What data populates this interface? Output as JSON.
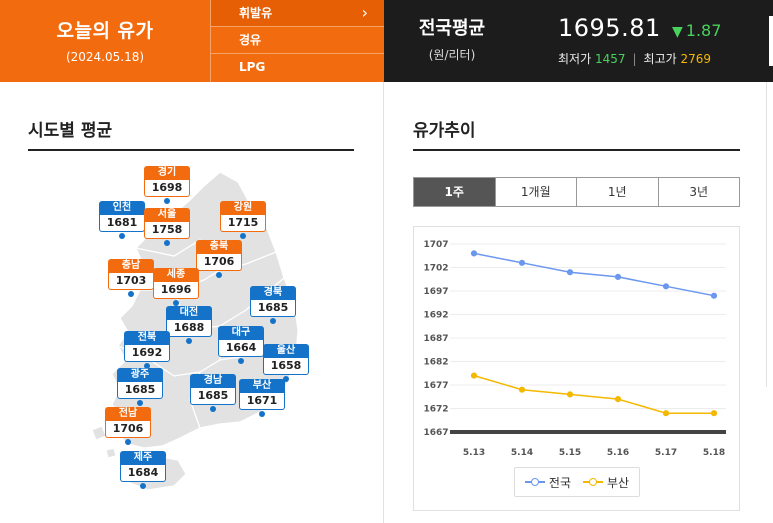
{
  "header": {
    "today_title": "오늘의 유가",
    "today_date": "(2024.05.18)",
    "fuel_menu": [
      {
        "label": "휘발유",
        "active": true
      },
      {
        "label": "경유",
        "active": false
      },
      {
        "label": "LPG",
        "active": false
      }
    ],
    "arrow_icon": "›",
    "national_label": "전국평균",
    "national_unit": "(원/리터)",
    "national_price": "1695.81",
    "change_icon": "▼",
    "national_change": "1.87",
    "min_label": "최저가",
    "min_value": "1457",
    "max_label": "최고가",
    "max_value": "2769",
    "sep": "|"
  },
  "regional": {
    "title": "시도별 평균",
    "regions": [
      {
        "name": "경기",
        "value": "1698",
        "color": "orange"
      },
      {
        "name": "인천",
        "value": "1681",
        "color": "blue"
      },
      {
        "name": "서울",
        "value": "1758",
        "color": "orange"
      },
      {
        "name": "강원",
        "value": "1715",
        "color": "orange"
      },
      {
        "name": "충북",
        "value": "1706",
        "color": "orange"
      },
      {
        "name": "충남",
        "value": "1703",
        "color": "orange"
      },
      {
        "name": "세종",
        "value": "1696",
        "color": "orange"
      },
      {
        "name": "경북",
        "value": "1685",
        "color": "blue"
      },
      {
        "name": "대전",
        "value": "1688",
        "color": "blue"
      },
      {
        "name": "전북",
        "value": "1692",
        "color": "blue"
      },
      {
        "name": "대구",
        "value": "1664",
        "color": "blue"
      },
      {
        "name": "울산",
        "value": "1658",
        "color": "blue"
      },
      {
        "name": "광주",
        "value": "1685",
        "color": "blue"
      },
      {
        "name": "경남",
        "value": "1685",
        "color": "blue"
      },
      {
        "name": "부산",
        "value": "1671",
        "color": "blue"
      },
      {
        "name": "전남",
        "value": "1706",
        "color": "orange"
      },
      {
        "name": "제주",
        "value": "1684",
        "color": "blue"
      }
    ]
  },
  "trend": {
    "title": "유가추이",
    "tabs": [
      {
        "label": "1주",
        "active": true
      },
      {
        "label": "1개월",
        "active": false
      },
      {
        "label": "1년",
        "active": false
      },
      {
        "label": "3년",
        "active": false
      }
    ]
  },
  "chart_data": {
    "type": "line",
    "title": "유가추이",
    "categories": [
      "5.13",
      "5.14",
      "5.15",
      "5.16",
      "5.17",
      "5.18"
    ],
    "y_ticks": [
      1667,
      1672,
      1677,
      1682,
      1687,
      1692,
      1697,
      1702,
      1707
    ],
    "ylim": [
      1667,
      1707
    ],
    "series": [
      {
        "name": "전국",
        "color": "#6b97ef",
        "values": [
          1705,
          1703,
          1701,
          1700,
          1698,
          1696
        ]
      },
      {
        "name": "부산",
        "color": "#f5b800",
        "values": [
          1679,
          1676,
          1675,
          1674,
          1671,
          1671
        ]
      }
    ],
    "legend": "bottom-center",
    "grid": true
  }
}
